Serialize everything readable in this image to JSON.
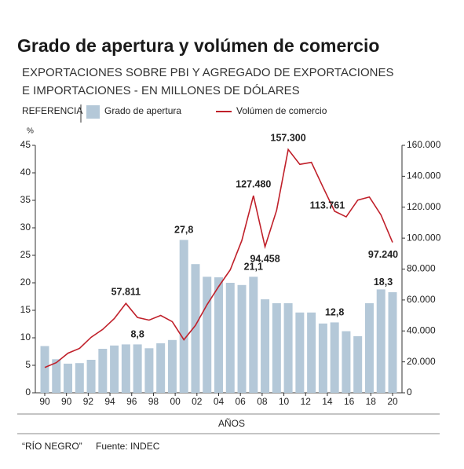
{
  "chart_data": {
    "type": "bar-line",
    "title": "Grado de apertura y volúmen de comercio",
    "subtitle": [
      "EXPORTACIONES SOBRE PBI Y AGREGADO DE EXPORTACIONES",
      "E IMPORTACIONES - EN MILLONES DE DÓLARES"
    ],
    "legend_title": "REFERENCIA",
    "y_label": "%",
    "x_label": "AÑOS",
    "xticks": [
      "90",
      "90",
      "92",
      "94",
      "96",
      "98",
      "00",
      "02",
      "04",
      "06",
      "08",
      "10",
      "12",
      "14",
      "16",
      "18",
      "20"
    ],
    "series": [
      {
        "name": "Grado de apertura",
        "color": "#b4c8d8",
        "kind": "bar",
        "values": [
          8.5,
          6.1,
          5.3,
          5.4,
          6.0,
          8.0,
          8.6,
          8.8,
          8.8,
          8.1,
          9.0,
          9.6,
          27.8,
          23.4,
          21.1,
          21.0,
          20.0,
          19.6,
          21.1,
          17.0,
          16.3,
          16.3,
          14.6,
          14.6,
          12.6,
          12.8,
          11.2,
          10.3,
          16.3,
          18.8,
          18.3
        ],
        "value_labels": [
          null,
          null,
          null,
          null,
          null,
          null,
          null,
          null,
          "8,8",
          null,
          null,
          null,
          "27,8",
          null,
          null,
          null,
          null,
          null,
          "21,1",
          null,
          null,
          null,
          null,
          null,
          null,
          "12,8",
          null,
          null,
          null,
          null,
          "18,3"
        ]
      },
      {
        "name": "Volúmen de comercio",
        "color": "#c0202a",
        "kind": "line",
        "axis": "y2",
        "values": [
          16400,
          19500,
          25600,
          28700,
          35900,
          41000,
          48000,
          57811,
          48700,
          47000,
          50000,
          46000,
          34300,
          43600,
          57000,
          68700,
          79500,
          98500,
          127480,
          94458,
          118000,
          157300,
          147700,
          149000,
          133000,
          117400,
          113761,
          124600,
          126600,
          115000,
          97240
        ],
        "value_labels": [
          null,
          null,
          null,
          null,
          null,
          null,
          null,
          "57.811",
          null,
          null,
          null,
          null,
          null,
          null,
          null,
          null,
          null,
          null,
          "127.480",
          "94.458",
          null,
          "157.300",
          null,
          null,
          null,
          null,
          "113.761",
          null,
          null,
          null,
          "97.240"
        ]
      }
    ],
    "ylim": [
      0,
      45
    ],
    "yticks": [
      0,
      5,
      10,
      15,
      20,
      25,
      30,
      35,
      40,
      45
    ],
    "y2lim": [
      0,
      160000
    ],
    "y2ticks": [
      0,
      {
        "value": 20000,
        "label": "20.000"
      },
      {
        "value": 40000,
        "label": "40.000"
      },
      {
        "value": 60000,
        "label": "60.000"
      },
      {
        "value": 80000,
        "label": "80.000"
      },
      {
        "value": 100000,
        "label": "100.000"
      },
      {
        "value": 120000,
        "label": "120.000"
      },
      {
        "value": 140000,
        "label": "140.000"
      },
      {
        "value": 160000,
        "label": "160.000"
      }
    ],
    "footer": [
      "“RÍO NEGRO”",
      "Fuente: INDEC"
    ]
  }
}
